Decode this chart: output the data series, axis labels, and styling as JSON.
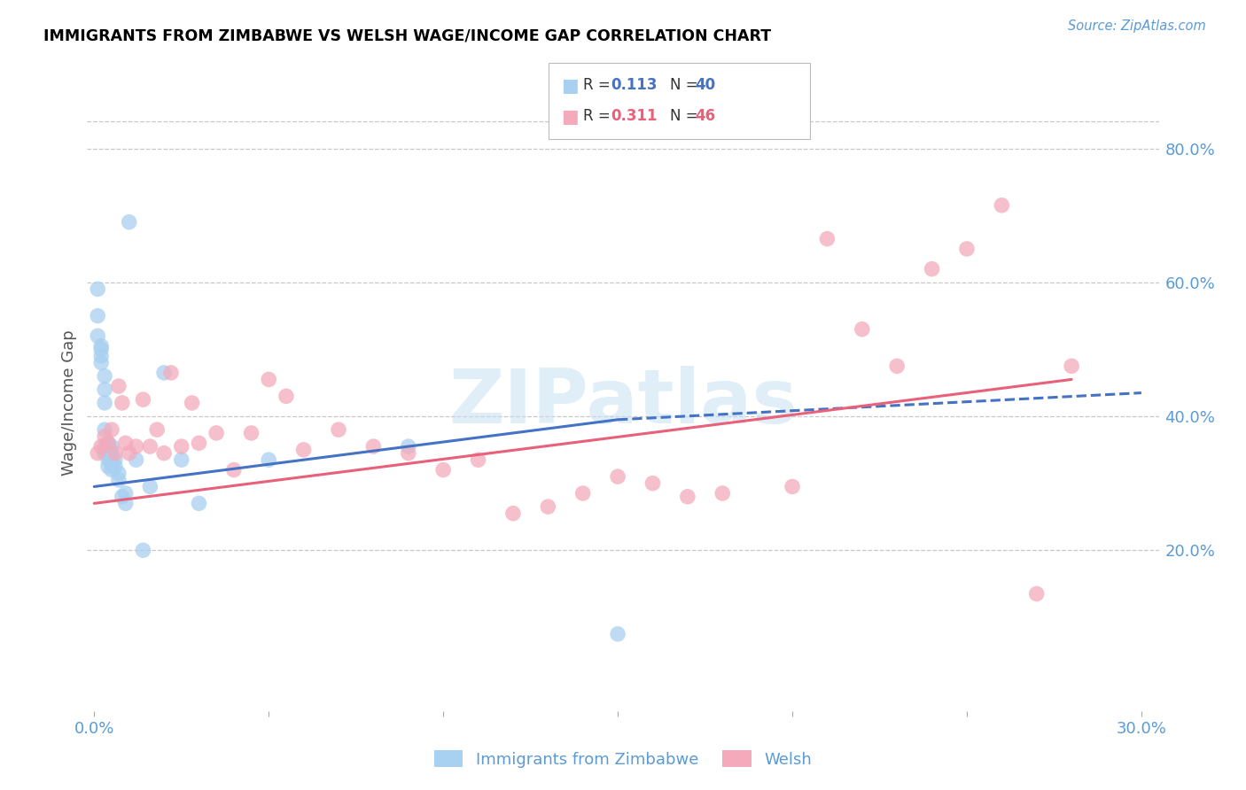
{
  "title": "IMMIGRANTS FROM ZIMBABWE VS WELSH WAGE/INCOME GAP CORRELATION CHART",
  "source": "Source: ZipAtlas.com",
  "ylabel": "Wage/Income Gap",
  "xlim": [
    -0.002,
    0.305
  ],
  "ylim": [
    -0.04,
    0.88
  ],
  "yticks_right": [
    0.2,
    0.4,
    0.6,
    0.8
  ],
  "ytick_labels_right": [
    "20.0%",
    "40.0%",
    "60.0%",
    "80.0%"
  ],
  "series1_label": "Immigrants from Zimbabwe",
  "series1_R": "0.113",
  "series1_N": "40",
  "series1_color": "#A8D0F0",
  "series1_line_color": "#4472C4",
  "series2_label": "Welsh",
  "series2_R": "0.311",
  "series2_N": "46",
  "series2_color": "#F4AABB",
  "series2_line_color": "#E8607A",
  "background_color": "#FFFFFF",
  "grid_color": "#C8C8C8",
  "watermark": "ZIPatlas",
  "series1_x": [
    0.001,
    0.001,
    0.001,
    0.002,
    0.002,
    0.002,
    0.002,
    0.003,
    0.003,
    0.003,
    0.003,
    0.003,
    0.003,
    0.004,
    0.004,
    0.004,
    0.004,
    0.004,
    0.005,
    0.005,
    0.005,
    0.005,
    0.005,
    0.006,
    0.006,
    0.007,
    0.007,
    0.008,
    0.009,
    0.009,
    0.01,
    0.012,
    0.014,
    0.016,
    0.02,
    0.025,
    0.03,
    0.05,
    0.09,
    0.15
  ],
  "series1_y": [
    0.59,
    0.55,
    0.52,
    0.505,
    0.5,
    0.49,
    0.48,
    0.46,
    0.44,
    0.42,
    0.38,
    0.355,
    0.345,
    0.36,
    0.355,
    0.345,
    0.335,
    0.325,
    0.355,
    0.345,
    0.34,
    0.33,
    0.32,
    0.335,
    0.325,
    0.315,
    0.305,
    0.28,
    0.285,
    0.27,
    0.69,
    0.335,
    0.2,
    0.295,
    0.465,
    0.335,
    0.27,
    0.335,
    0.355,
    0.075
  ],
  "series2_x": [
    0.001,
    0.002,
    0.003,
    0.004,
    0.005,
    0.006,
    0.007,
    0.008,
    0.009,
    0.01,
    0.012,
    0.014,
    0.016,
    0.018,
    0.02,
    0.022,
    0.025,
    0.028,
    0.03,
    0.035,
    0.04,
    0.045,
    0.05,
    0.055,
    0.06,
    0.07,
    0.08,
    0.09,
    0.1,
    0.11,
    0.12,
    0.13,
    0.14,
    0.15,
    0.16,
    0.17,
    0.18,
    0.2,
    0.21,
    0.22,
    0.23,
    0.24,
    0.25,
    0.26,
    0.27,
    0.28
  ],
  "series2_y": [
    0.345,
    0.355,
    0.37,
    0.36,
    0.38,
    0.345,
    0.445,
    0.42,
    0.36,
    0.345,
    0.355,
    0.425,
    0.355,
    0.38,
    0.345,
    0.465,
    0.355,
    0.42,
    0.36,
    0.375,
    0.32,
    0.375,
    0.455,
    0.43,
    0.35,
    0.38,
    0.355,
    0.345,
    0.32,
    0.335,
    0.255,
    0.265,
    0.285,
    0.31,
    0.3,
    0.28,
    0.285,
    0.295,
    0.665,
    0.53,
    0.475,
    0.62,
    0.65,
    0.715,
    0.135,
    0.475
  ]
}
